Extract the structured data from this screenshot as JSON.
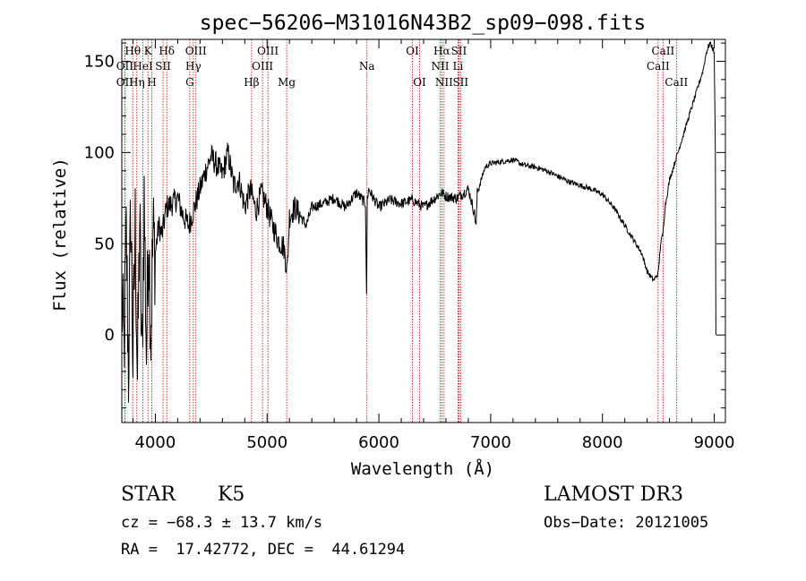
{
  "chart_data": {
    "type": "line",
    "title": "spec−56206−M31016N43B2_sp09−098.fits",
    "xlabel": "Wavelength (Å)",
    "ylabel": "Flux (relative)",
    "xlim": [
      3700,
      9100
    ],
    "ylim": [
      -48,
      162
    ],
    "xticks": [
      4000,
      5000,
      6000,
      7000,
      8000,
      9000
    ],
    "xtick_labels": [
      "4000",
      "5000",
      "6000",
      "7000",
      "8000",
      "9000"
    ],
    "yticks": [
      0,
      50,
      100,
      150
    ],
    "ytick_labels": [
      "0",
      "50",
      "100",
      "150"
    ],
    "grid": false,
    "legend": "none",
    "series": [
      {
        "name": "spectrum",
        "x": [
          3700,
          3720,
          3740,
          3760,
          3780,
          3800,
          3820,
          3840,
          3860,
          3880,
          3900,
          3920,
          3940,
          3960,
          3980,
          4000,
          4030,
          4060,
          4100,
          4150,
          4200,
          4250,
          4300,
          4350,
          4400,
          4450,
          4500,
          4550,
          4600,
          4650,
          4700,
          4750,
          4800,
          4850,
          4900,
          4950,
          5000,
          5050,
          5100,
          5150,
          5180,
          5200,
          5250,
          5300,
          5350,
          5400,
          5500,
          5600,
          5700,
          5800,
          5880,
          5890,
          5896,
          5910,
          5950,
          6000,
          6100,
          6200,
          6300,
          6400,
          6500,
          6560,
          6600,
          6700,
          6800,
          6850,
          6870,
          6880,
          6900,
          6950,
          7000,
          7100,
          7200,
          7300,
          7400,
          7500,
          7600,
          7700,
          7800,
          7900,
          8000,
          8100,
          8200,
          8250,
          8300,
          8350,
          8400,
          8430,
          8460,
          8480,
          8500,
          8520,
          8540,
          8560,
          8600,
          8650,
          8700,
          8750,
          8800,
          8850,
          8900,
          8930,
          8960,
          8980,
          9000,
          9010,
          9015
        ],
        "y": [
          20,
          -10,
          55,
          -20,
          70,
          -15,
          60,
          -25,
          65,
          -20,
          75,
          -10,
          60,
          0,
          55,
          45,
          60,
          55,
          70,
          72,
          75,
          65,
          60,
          70,
          80,
          90,
          98,
          93,
          88,
          100,
          82,
          85,
          70,
          80,
          68,
          78,
          70,
          60,
          52,
          48,
          35,
          65,
          70,
          65,
          60,
          70,
          72,
          75,
          70,
          78,
          72,
          20,
          75,
          80,
          75,
          70,
          74,
          72,
          74,
          70,
          75,
          78,
          76,
          75,
          80,
          68,
          60,
          78,
          82,
          92,
          94,
          95,
          96,
          93,
          92,
          90,
          87,
          84,
          82,
          80,
          77,
          70,
          60,
          55,
          50,
          45,
          35,
          32,
          30,
          32,
          34,
          50,
          55,
          70,
          85,
          95,
          105,
          115,
          125,
          135,
          145,
          155,
          160,
          158,
          155,
          100,
          0
        ]
      }
    ],
    "emission_lines": [
      {
        "label": "Hθ",
        "wavelength": 3798,
        "row": 1
      },
      {
        "label": "OII",
        "wavelength": 3727,
        "row": 2
      },
      {
        "label": "OII",
        "wavelength": 3727,
        "row": 3
      },
      {
        "label": "HeI",
        "wavelength": 3889,
        "row": 2
      },
      {
        "label": "Hη",
        "wavelength": 3835,
        "row": 3
      },
      {
        "label": "K",
        "wavelength": 3934,
        "row": 1
      },
      {
        "label": "H",
        "wavelength": 3969,
        "row": 3
      },
      {
        "label": "Hδ",
        "wavelength": 4102,
        "row": 1
      },
      {
        "label": "SII",
        "wavelength": 4069,
        "row": 2
      },
      {
        "label": "OIII",
        "wavelength": 4363,
        "row": 1
      },
      {
        "label": "Hγ",
        "wavelength": 4340,
        "row": 2
      },
      {
        "label": "G",
        "wavelength": 4308,
        "row": 3
      },
      {
        "label": "Hβ",
        "wavelength": 4861,
        "row": 3
      },
      {
        "label": "OIII",
        "wavelength": 5007,
        "row": 1
      },
      {
        "label": "OIII",
        "wavelength": 4959,
        "row": 2
      },
      {
        "label": "Mg",
        "wavelength": 5175,
        "row": 3
      },
      {
        "label": "Na",
        "wavelength": 5893,
        "row": 2
      },
      {
        "label": "OI",
        "wavelength": 6300,
        "row": 1
      },
      {
        "label": "OI",
        "wavelength": 6364,
        "row": 3
      },
      {
        "label": "Hα",
        "wavelength": 6563,
        "row": 1
      },
      {
        "label": "NII",
        "wavelength": 6548,
        "row": 2
      },
      {
        "label": "NII",
        "wavelength": 6583,
        "row": 3
      },
      {
        "label": "SII",
        "wavelength": 6716,
        "row": 1
      },
      {
        "label": "Li",
        "wavelength": 6708,
        "row": 2
      },
      {
        "label": "SII",
        "wavelength": 6731,
        "row": 3
      },
      {
        "label": "CaII",
        "wavelength": 8542,
        "row": 1
      },
      {
        "label": "CaII",
        "wavelength": 8498,
        "row": 2
      },
      {
        "label": "CaII",
        "wavelength": 8662,
        "row": 3
      }
    ]
  },
  "info": {
    "class": "STAR",
    "subclass": "K5",
    "survey": "LAMOST DR3",
    "cz": "cz = −68.3 ± 13.7 km/s",
    "obs_date": "Obs−Date: 20121005",
    "radec": "RA =  17.42772, DEC =  44.61294"
  },
  "colors": {
    "spectrum": "#000000",
    "line_marker": "#cc0000",
    "axis": "#000000"
  }
}
